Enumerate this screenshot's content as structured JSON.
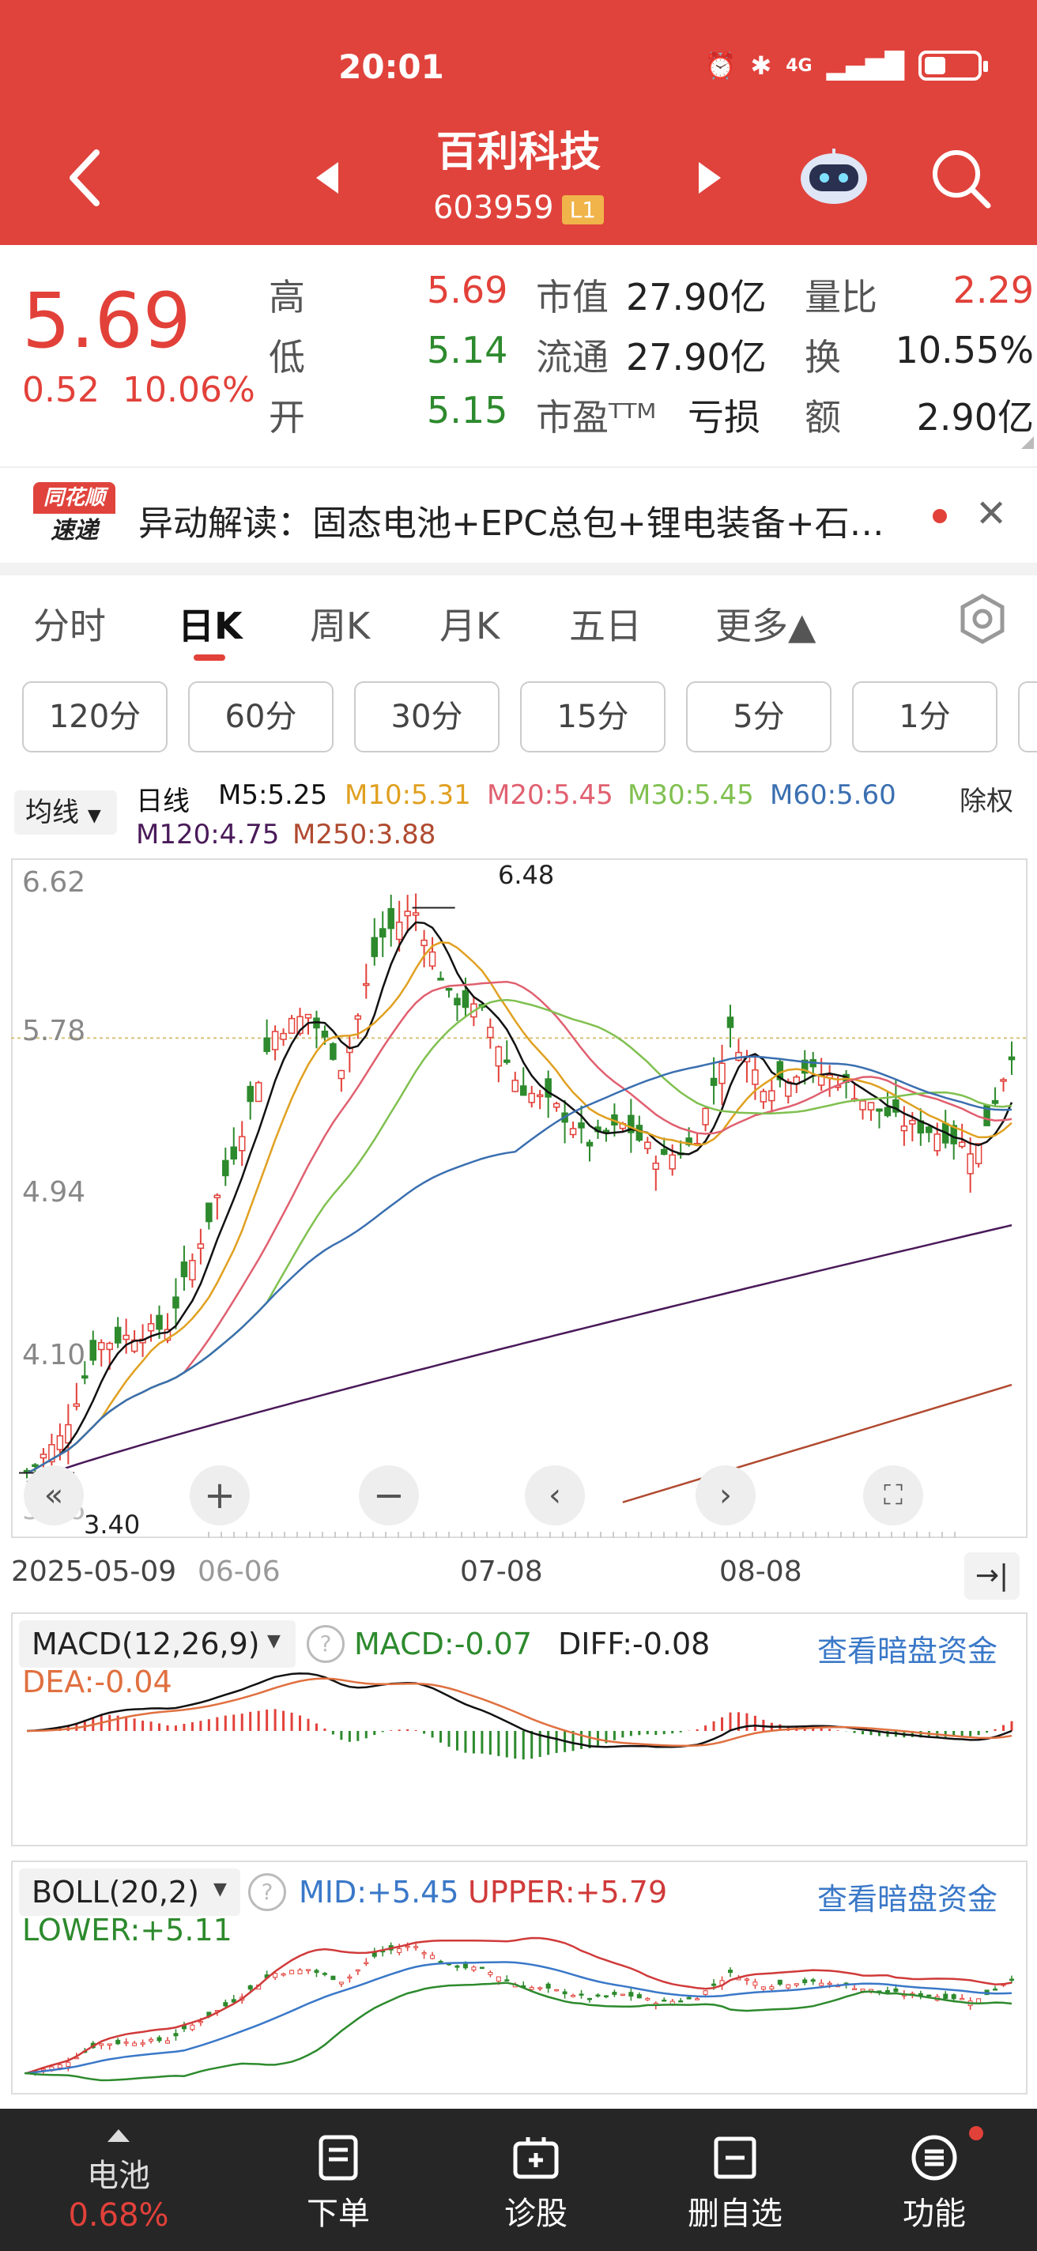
{
  "status_bar": {
    "time": "20:01",
    "icons": [
      "alarm-icon",
      "bluetooth-icon",
      "signal-4g-icon",
      "battery-icon"
    ],
    "network": "4G"
  },
  "header": {
    "stock_name": "百利科技",
    "stock_code": "603959",
    "level_badge": "L1"
  },
  "quote": {
    "price": "5.69",
    "change": "0.52",
    "change_pct": "10.06%",
    "high_label": "高",
    "high": "5.69",
    "low_label": "低",
    "low": "5.14",
    "open_label": "开",
    "open": "5.15",
    "mktcap_label": "市值",
    "mktcap": "27.90亿",
    "float_label": "流通",
    "float": "27.90亿",
    "pe_label": "市盈ᵀᵀᴹ",
    "pe": "亏损",
    "vol_ratio_label": "量比",
    "vol_ratio": "2.29",
    "turnover_label": "换",
    "turnover": "10.55%",
    "amount_label": "额",
    "amount": "2.90亿"
  },
  "news": {
    "logo_top": "同花顺",
    "logo_bottom": "速递",
    "text": "异动解读：固态电池+EPC总包+锂电装备+石…"
  },
  "tabs": [
    "分时",
    "日K",
    "周K",
    "月K",
    "五日",
    "更多▲"
  ],
  "active_tab": "日K",
  "intervals": [
    "120分",
    "60分",
    "30分",
    "15分",
    "5分",
    "1分"
  ],
  "ma_bar": {
    "selector": "均线",
    "title": "日线",
    "m5": "M5:5.25",
    "m10": "M10:5.31",
    "m20": "M20:5.45",
    "m30": "M30:5.45",
    "m60": "M60:5.60",
    "m120": "M120:4.75",
    "m250": "M250:3.88",
    "adjust": "除权"
  },
  "chart": {
    "y_labels": [
      "6.62",
      "5.78",
      "4.94",
      "4.10",
      "3.26"
    ],
    "high_marker": "6.48",
    "low_marker": "3.40",
    "x_labels": [
      "2025-05-09",
      "06-06",
      "07-08",
      "08-08"
    ],
    "controls": [
      "rewind-icon",
      "zoom-in-icon",
      "zoom-out-icon",
      "prev-icon",
      "next-icon",
      "fullscreen-icon"
    ]
  },
  "chart_data": {
    "type": "candlestick",
    "x": [
      "2025-05-09",
      "06-06",
      "07-08",
      "08-08"
    ],
    "ylim": [
      3.26,
      6.62
    ],
    "high": 6.48,
    "low": 3.4,
    "close_trend": [
      3.4,
      3.6,
      4.1,
      4.15,
      4.2,
      4.7,
      5.2,
      5.8,
      5.9,
      5.6,
      6.3,
      6.48,
      6.0,
      5.9,
      5.5,
      5.4,
      5.2,
      5.3,
      5.1,
      5.2,
      5.8,
      5.5,
      5.6,
      5.55,
      5.4,
      5.3,
      5.25,
      5.15,
      5.69
    ]
  },
  "macd": {
    "title": "MACD(12,26,9)",
    "macd": "MACD:-0.07",
    "diff": "DIFF:-0.08",
    "dea": "DEA:-0.04",
    "link": "查看暗盘资金"
  },
  "boll": {
    "title": "BOLL(20,2)",
    "mid": "MID:+5.45",
    "upper": "UPPER:+5.79",
    "lower": "LOWER:+5.11",
    "link": "查看暗盘资金"
  },
  "nav": {
    "battery_label": "电池",
    "battery_pct": "0.68%",
    "items": [
      "下单",
      "诊股",
      "删自选",
      "功能"
    ]
  },
  "colors": {
    "header": "#e0433c",
    "up": "#e2413a",
    "down": "#2d8a2d",
    "m5": "#111111",
    "m10": "#e0a020",
    "m20": "#e06070",
    "m30": "#80c050",
    "m60": "#3a6fb0",
    "m120": "#4a1a5a",
    "m250": "#b04a30"
  }
}
